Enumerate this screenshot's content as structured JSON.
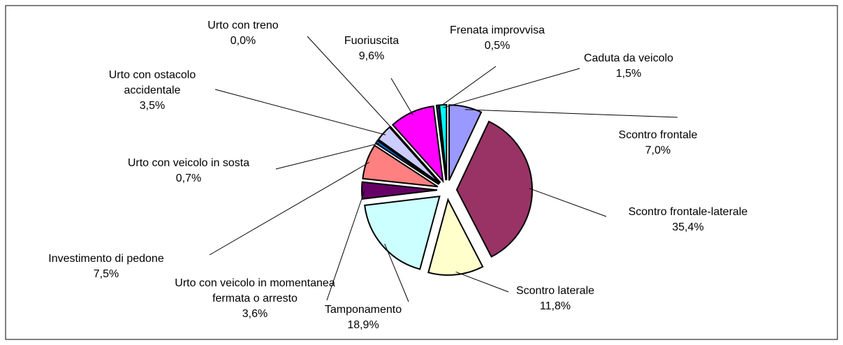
{
  "chart_data": {
    "type": "pie",
    "categories": [
      "Scontro frontale",
      "Scontro frontale-laterale",
      "Scontro laterale",
      "Tamponamento",
      "Urto con veicolo in momentanea fermata o arresto",
      "Investimento di pedone",
      "Urto con veicolo in sosta",
      "Urto con ostacolo accidentale",
      "Urto con treno",
      "Fuoriuscita",
      "Frenata improvvisa",
      "Caduta da veicolo"
    ],
    "values": [
      7.0,
      35.4,
      11.8,
      18.9,
      3.6,
      7.5,
      0.7,
      3.5,
      0.0,
      9.6,
      0.5,
      1.5
    ],
    "value_labels": [
      "7,0%",
      "35,4%",
      "11,8%",
      "18,9%",
      "3,6%",
      "7,5%",
      "0,7%",
      "3,5%",
      "0,0%",
      "9,6%",
      "0,5%",
      "1,5%"
    ],
    "colors": [
      "#9999ff",
      "#993366",
      "#ffffcc",
      "#ccffff",
      "#660066",
      "#ff8080",
      "#0066cc",
      "#ccccff",
      "#000080",
      "#ff00ff",
      "#333399",
      "#00ffff"
    ]
  }
}
